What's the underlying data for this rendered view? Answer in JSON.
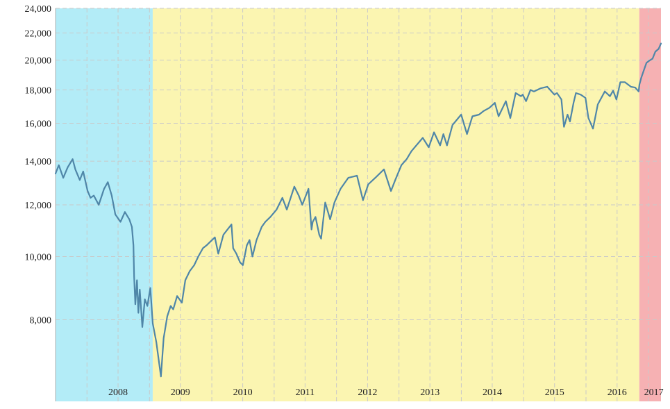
{
  "chart_data": {
    "type": "line",
    "title": "",
    "xlabel": "",
    "ylabel": "",
    "y_scale": "log",
    "ylim": [
      6000,
      24000
    ],
    "xlim": [
      "2007-07-01",
      "2017-03-15"
    ],
    "grid": true,
    "y_ticks": [
      {
        "value": 8000,
        "label": "8,000"
      },
      {
        "value": 10000,
        "label": "10,000"
      },
      {
        "value": 12000,
        "label": "12,000"
      },
      {
        "value": 14000,
        "label": "14,000"
      },
      {
        "value": 16000,
        "label": "16,000"
      },
      {
        "value": 18000,
        "label": "18,000"
      },
      {
        "value": 20000,
        "label": "20,000"
      },
      {
        "value": 22000,
        "label": "22,000"
      },
      {
        "value": 24000,
        "label": "24,000"
      }
    ],
    "x_ticks": [
      {
        "value": "2008-07-01",
        "label": "2008"
      },
      {
        "value": "2009-07-01",
        "label": "2009"
      },
      {
        "value": "2010-07-01",
        "label": "2010"
      },
      {
        "value": "2011-07-01",
        "label": "2011"
      },
      {
        "value": "2012-07-01",
        "label": "2012"
      },
      {
        "value": "2013-07-01",
        "label": "2013"
      },
      {
        "value": "2014-07-01",
        "label": "2014"
      },
      {
        "value": "2015-07-01",
        "label": "2015"
      },
      {
        "value": "2016-07-01",
        "label": "2016"
      },
      {
        "value": "2017-02-01",
        "label": "2017"
      }
    ],
    "regions": [
      {
        "from": "2007-07-01",
        "to": "2009-01-20",
        "color": "#b3ecf7"
      },
      {
        "from": "2009-01-20",
        "to": "2016-11-08",
        "color": "#fbf5b1"
      },
      {
        "from": "2016-11-08",
        "to": "2017-03-15",
        "color": "#f6b1b3"
      }
    ],
    "line_color": "#4f86a8",
    "series": [
      {
        "x": [
          "2007-07-01",
          "2007-07-20",
          "2007-08-15",
          "2007-09-10",
          "2007-10-09",
          "2007-10-25",
          "2007-11-20",
          "2007-12-10",
          "2008-01-05",
          "2008-01-22",
          "2008-02-10",
          "2008-03-10",
          "2008-04-10",
          "2008-05-02",
          "2008-05-25",
          "2008-06-15",
          "2008-07-15",
          "2008-08-10",
          "2008-09-05",
          "2008-09-20",
          "2008-09-29",
          "2008-10-03",
          "2008-10-10",
          "2008-10-20",
          "2008-10-28",
          "2008-11-05",
          "2008-11-20",
          "2008-12-05",
          "2008-12-20",
          "2009-01-06",
          "2009-01-20",
          "2009-02-10",
          "2009-03-09",
          "2009-03-25",
          "2009-04-15",
          "2009-05-05",
          "2009-05-20",
          "2009-06-12",
          "2009-07-10",
          "2009-07-30",
          "2009-08-25",
          "2009-09-20",
          "2009-10-14",
          "2009-11-10",
          "2009-12-01",
          "2009-12-25",
          "2010-01-19",
          "2010-02-08",
          "2010-03-10",
          "2010-04-26",
          "2010-05-06",
          "2010-05-25",
          "2010-06-15",
          "2010-07-02",
          "2010-07-25",
          "2010-08-10",
          "2010-08-27",
          "2010-09-20",
          "2010-10-20",
          "2010-11-10",
          "2010-12-10",
          "2011-01-15",
          "2011-02-18",
          "2011-03-16",
          "2011-04-29",
          "2011-05-25",
          "2011-06-15",
          "2011-07-21",
          "2011-08-08",
          "2011-08-15",
          "2011-08-31",
          "2011-09-22",
          "2011-10-03",
          "2011-10-27",
          "2011-11-25",
          "2011-12-20",
          "2012-01-25",
          "2012-03-10",
          "2012-04-30",
          "2012-06-04",
          "2012-07-05",
          "2012-08-15",
          "2012-10-05",
          "2012-11-15",
          "2012-12-10",
          "2013-01-15",
          "2013-02-15",
          "2013-03-15",
          "2013-05-20",
          "2013-06-24",
          "2013-07-25",
          "2013-08-30",
          "2013-09-18",
          "2013-10-09",
          "2013-11-10",
          "2013-12-31",
          "2014-02-03",
          "2014-03-07",
          "2014-04-15",
          "2014-05-10",
          "2014-06-15",
          "2014-07-16",
          "2014-08-07",
          "2014-09-19",
          "2014-10-15",
          "2014-11-15",
          "2014-12-16",
          "2014-12-26",
          "2015-01-15",
          "2015-02-10",
          "2015-03-02",
          "2015-04-10",
          "2015-05-19",
          "2015-06-30",
          "2015-07-15",
          "2015-08-10",
          "2015-08-25",
          "2015-09-15",
          "2015-09-29",
          "2015-10-20",
          "2015-11-03",
          "2015-12-01",
          "2015-12-29",
          "2016-01-15",
          "2016-02-11",
          "2016-03-10",
          "2016-04-20",
          "2016-05-20",
          "2016-06-08",
          "2016-06-27",
          "2016-07-20",
          "2016-08-15",
          "2016-09-20",
          "2016-10-15",
          "2016-11-04",
          "2016-11-09",
          "2016-11-20",
          "2016-12-05",
          "2016-12-20",
          "2017-01-05",
          "2017-01-25",
          "2017-02-10",
          "2017-03-01",
          "2017-03-15"
        ],
        "y": [
          13400,
          13800,
          13200,
          13700,
          14100,
          13600,
          13100,
          13500,
          12600,
          12300,
          12400,
          12000,
          12700,
          13000,
          12400,
          11600,
          11300,
          11700,
          11400,
          11100,
          10400,
          9300,
          8450,
          9200,
          8200,
          8900,
          7800,
          8600,
          8400,
          8950,
          7900,
          7400,
          6550,
          7500,
          8100,
          8400,
          8300,
          8700,
          8500,
          9200,
          9500,
          9700,
          10000,
          10300,
          10400,
          10550,
          10700,
          10100,
          10800,
          11200,
          10300,
          10100,
          9800,
          9700,
          10400,
          10600,
          10000,
          10600,
          11100,
          11300,
          11500,
          11800,
          12300,
          11800,
          12800,
          12400,
          12000,
          12700,
          11000,
          11300,
          11500,
          10800,
          10650,
          12100,
          11400,
          12100,
          12700,
          13200,
          13300,
          12200,
          12900,
          13200,
          13600,
          12600,
          13100,
          13800,
          14100,
          14500,
          15200,
          14700,
          15500,
          14800,
          15400,
          14800,
          15900,
          16500,
          15400,
          16400,
          16500,
          16700,
          16900,
          17200,
          16400,
          17300,
          16300,
          17800,
          17600,
          17700,
          17300,
          18000,
          17900,
          18100,
          18200,
          17700,
          17800,
          17400,
          15800,
          16500,
          16100,
          17200,
          17800,
          17700,
          17500,
          16300,
          15700,
          17100,
          17900,
          17600,
          17950,
          17400,
          18500,
          18500,
          18200,
          18150,
          17900,
          18350,
          18800,
          19300,
          19800,
          19950,
          20100,
          20600,
          20800,
          21200
        ],
        "name": ""
      }
    ]
  }
}
